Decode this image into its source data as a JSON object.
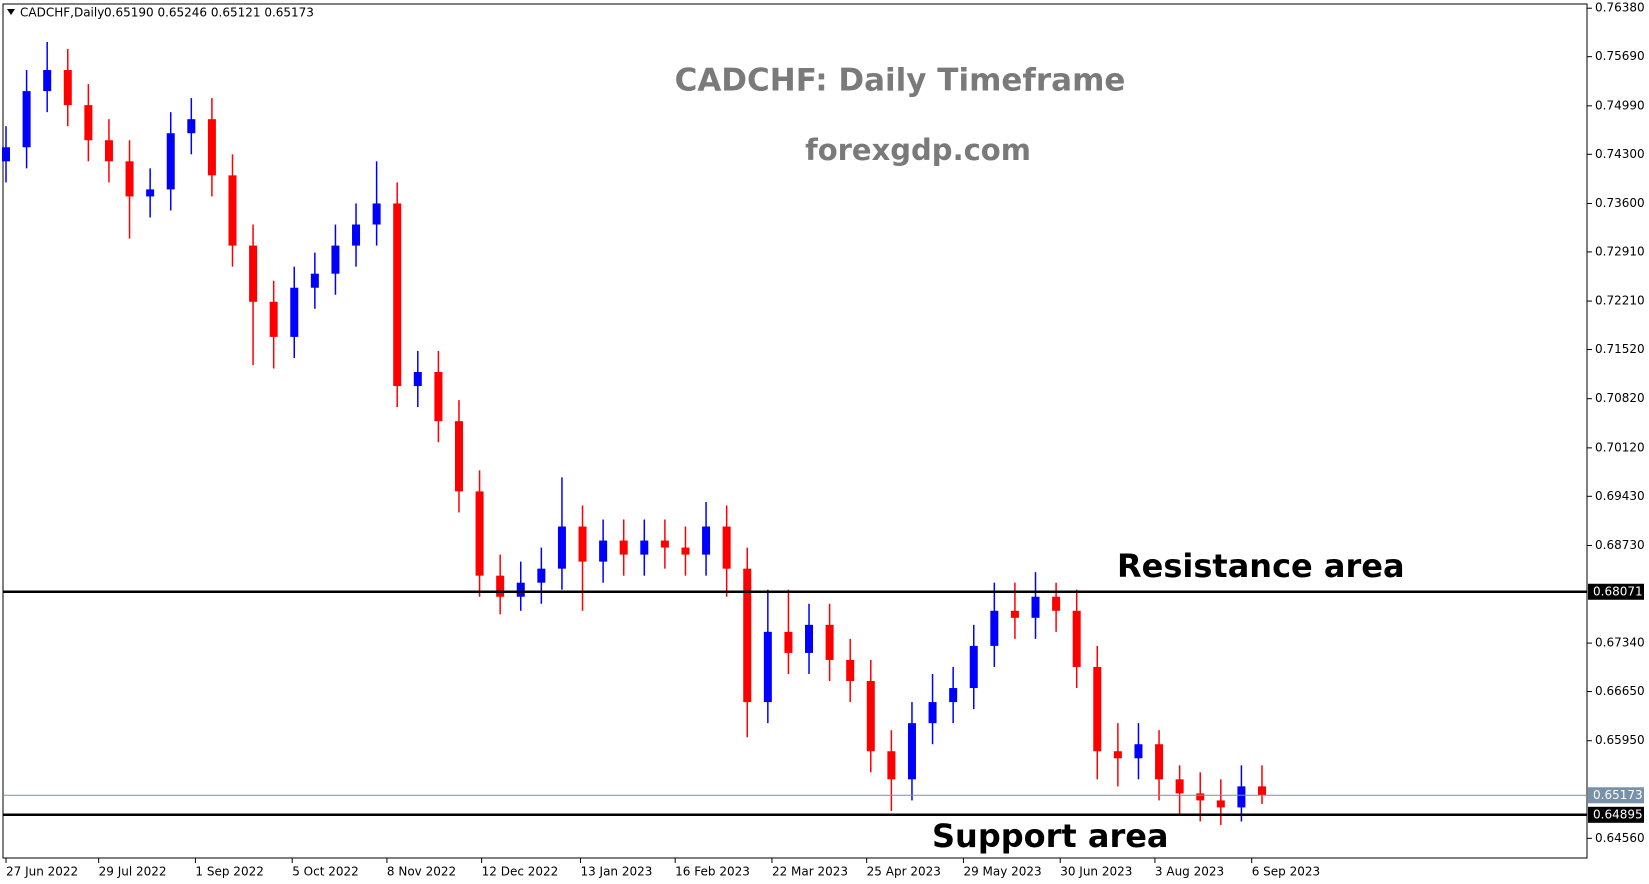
{
  "chart_data": {
    "type": "candlestick",
    "symbol": "CADCHF,Daily",
    "quote": "0.65190 0.65246 0.65121 0.65173",
    "title": "CADCHF: Daily Timeframe",
    "subtitle": "forexgdp.com",
    "annotations": [
      "Resistance area",
      "Support area"
    ],
    "up_color": "#0000ff",
    "down_color": "#ff0000",
    "open": [
      0.742,
      0.744,
      0.752,
      0.755,
      0.75,
      0.745,
      0.742,
      0.737,
      0.738,
      0.746,
      0.748,
      0.74,
      0.73,
      0.722,
      0.717,
      0.724,
      0.726,
      0.73,
      0.733,
      0.736,
      0.71,
      0.712,
      0.705,
      0.695,
      0.683,
      0.68,
      0.682,
      0.684,
      0.69,
      0.685,
      0.688,
      0.686,
      0.688,
      0.687,
      0.686,
      0.69,
      0.684,
      0.665,
      0.675,
      0.672,
      0.676,
      0.671,
      0.668,
      0.658,
      0.654,
      0.662,
      0.665,
      0.667,
      0.673,
      0.678,
      0.677,
      0.68,
      0.678,
      0.67,
      0.658,
      0.657,
      0.659,
      0.654,
      0.652,
      0.651,
      0.65,
      0.653
    ],
    "high": [
      0.747,
      0.755,
      0.759,
      0.758,
      0.753,
      0.748,
      0.745,
      0.741,
      0.749,
      0.751,
      0.751,
      0.743,
      0.733,
      0.725,
      0.727,
      0.729,
      0.733,
      0.736,
      0.742,
      0.739,
      0.715,
      0.715,
      0.708,
      0.698,
      0.686,
      0.685,
      0.687,
      0.697,
      0.693,
      0.691,
      0.691,
      0.691,
      0.691,
      0.69,
      0.6935,
      0.693,
      0.687,
      0.681,
      0.681,
      0.679,
      0.679,
      0.674,
      0.671,
      0.661,
      0.665,
      0.669,
      0.67,
      0.676,
      0.682,
      0.682,
      0.6835,
      0.682,
      0.681,
      0.673,
      0.662,
      0.662,
      0.661,
      0.656,
      0.655,
      0.654,
      0.656,
      0.656
    ],
    "low": [
      0.739,
      0.741,
      0.749,
      0.747,
      0.742,
      0.739,
      0.731,
      0.734,
      0.735,
      0.743,
      0.737,
      0.727,
      0.713,
      0.7125,
      0.714,
      0.721,
      0.723,
      0.727,
      0.73,
      0.707,
      0.707,
      0.702,
      0.692,
      0.68,
      0.6775,
      0.678,
      0.679,
      0.681,
      0.678,
      0.682,
      0.683,
      0.683,
      0.684,
      0.683,
      0.683,
      0.68,
      0.66,
      0.662,
      0.669,
      0.669,
      0.668,
      0.665,
      0.655,
      0.6495,
      0.651,
      0.659,
      0.662,
      0.664,
      0.67,
      0.674,
      0.674,
      0.675,
      0.667,
      0.654,
      0.653,
      0.654,
      0.651,
      0.649,
      0.648,
      0.6475,
      0.648,
      0.6505
    ],
    "close": [
      0.744,
      0.752,
      0.755,
      0.75,
      0.745,
      0.742,
      0.737,
      0.738,
      0.746,
      0.748,
      0.74,
      0.73,
      0.722,
      0.717,
      0.724,
      0.726,
      0.73,
      0.733,
      0.736,
      0.71,
      0.712,
      0.705,
      0.695,
      0.683,
      0.68,
      0.682,
      0.684,
      0.69,
      0.685,
      0.688,
      0.686,
      0.688,
      0.687,
      0.686,
      0.69,
      0.684,
      0.665,
      0.675,
      0.672,
      0.676,
      0.671,
      0.668,
      0.658,
      0.654,
      0.662,
      0.665,
      0.667,
      0.673,
      0.678,
      0.677,
      0.68,
      0.678,
      0.67,
      0.658,
      0.657,
      0.659,
      0.654,
      0.652,
      0.651,
      0.65,
      0.653,
      0.65173
    ],
    "xlim": [
      0,
      61
    ],
    "xticks": [
      {
        "value": 0,
        "label": "27 Jun 2022"
      },
      {
        "value": 4.5,
        "label": "29 Jul 2022"
      },
      {
        "value": 9.2,
        "label": "1 Sep 2022"
      },
      {
        "value": 13.9,
        "label": "5 Oct 2022"
      },
      {
        "value": 18.5,
        "label": "8 Nov 2022"
      },
      {
        "value": 23.1,
        "label": "12 Dec 2022"
      },
      {
        "value": 27.9,
        "label": "13 Jan 2023"
      },
      {
        "value": 32.5,
        "label": "16 Feb 2023"
      },
      {
        "value": 37.2,
        "label": "22 Mar 2023"
      },
      {
        "value": 41.8,
        "label": "25 Apr 2023"
      },
      {
        "value": 46.5,
        "label": "29 May 2023"
      },
      {
        "value": 51.2,
        "label": "30 Jun 2023"
      },
      {
        "value": 55.8,
        "label": "3 Aug 2023"
      },
      {
        "value": 60.5,
        "label": "6 Sep 2023"
      }
    ],
    "ylim": [
      0.6428,
      0.7644
    ],
    "yticks": [
      {
        "value": 0.7638,
        "label": "0.76380"
      },
      {
        "value": 0.7569,
        "label": "0.75690"
      },
      {
        "value": 0.7499,
        "label": "0.74990"
      },
      {
        "value": 0.743,
        "label": "0.74300"
      },
      {
        "value": 0.736,
        "label": "0.73600"
      },
      {
        "value": 0.7291,
        "label": "0.72910"
      },
      {
        "value": 0.7221,
        "label": "0.72210"
      },
      {
        "value": 0.7152,
        "label": "0.71520"
      },
      {
        "value": 0.7082,
        "label": "0.70820"
      },
      {
        "value": 0.7012,
        "label": "0.70120"
      },
      {
        "value": 0.6943,
        "label": "0.69430"
      },
      {
        "value": 0.6873,
        "label": "0.68730"
      },
      {
        "value": 0.6734,
        "label": "0.67340"
      },
      {
        "value": 0.6665,
        "label": "0.66650"
      },
      {
        "value": 0.6595,
        "label": "0.65950"
      },
      {
        "value": 0.6456,
        "label": "0.64560"
      }
    ],
    "price_lines": [
      {
        "value": 0.68071,
        "label": "0.68071",
        "color": "#000000"
      },
      {
        "value": 0.64895,
        "label": "0.64895",
        "color": "#000000"
      },
      {
        "value": 0.65173,
        "label": "0.65173",
        "color": "#7890a8"
      }
    ]
  }
}
